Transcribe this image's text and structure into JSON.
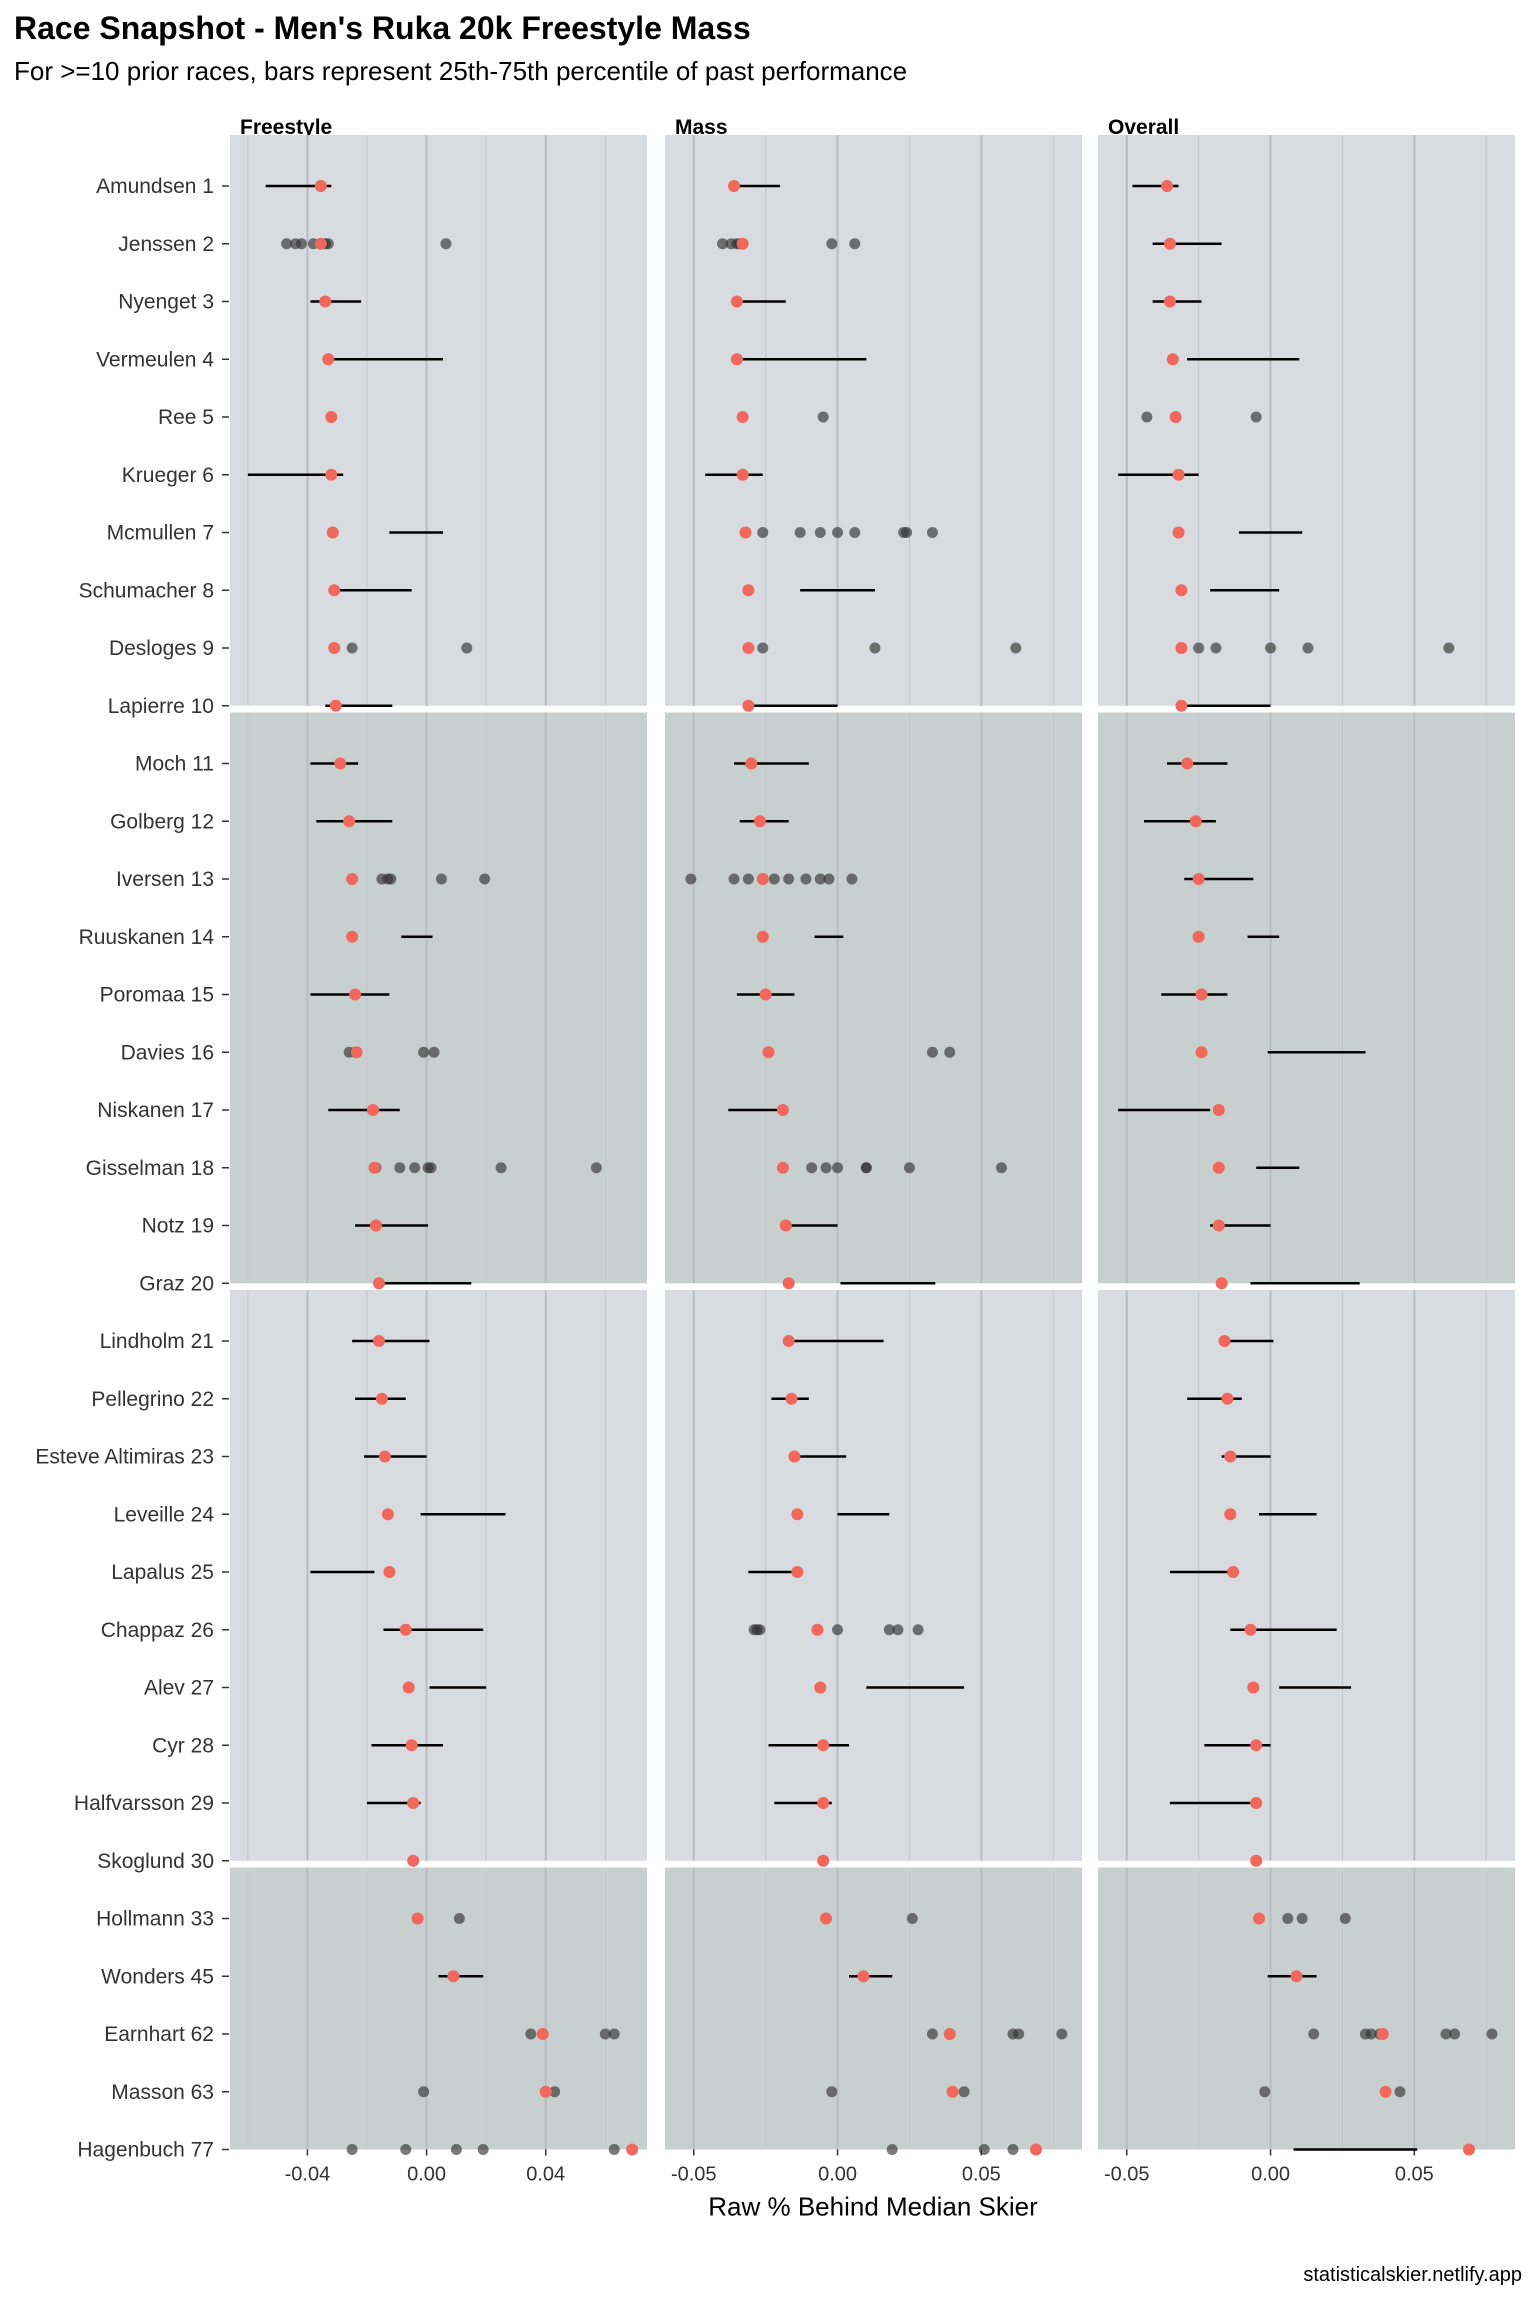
{
  "chart_data": {
    "type": "scatter",
    "title": "Race Snapshot -  Men's Ruka 20k Freestyle Mass",
    "subtitle": "For >=10 prior races, bars represent 25th-75th percentile of past performance",
    "caption": "statisticalskier.netlify.app",
    "xlabel": "Raw % Behind Median Skier",
    "colors": {
      "current": "#F0675C",
      "past": "#333333",
      "bar": "#000000",
      "band_light": "#D8DBE0",
      "band_dark": "#C8D0CF"
    },
    "skiers": [
      "Amundsen 1",
      "Jenssen 2",
      "Nyenget 3",
      "Vermeulen 4",
      "Ree 5",
      "Krueger 6",
      "Mcmullen 7",
      "Schumacher 8",
      "Desloges 9",
      "Lapierre 10",
      "Moch 11",
      "Golberg 12",
      "Iversen 13",
      "Ruuskanen 14",
      "Poromaa 15",
      "Davies 16",
      "Niskanen 17",
      "Gisselman 18",
      "Notz 19",
      "Graz 20",
      "Lindholm 21",
      "Pellegrino 22",
      "Esteve Altimiras 23",
      "Leveille 24",
      "Lapalus 25",
      "Chappaz 26",
      "Alev 27",
      "Cyr 28",
      "Halfvarsson 29",
      "Skoglund 30",
      "Hollmann 33",
      "Wonders 45",
      "Earnhart 62",
      "Masson 63",
      "Hagenbuch 77"
    ],
    "groups": [
      10,
      10,
      10,
      5
    ],
    "facets": [
      {
        "name": "Freestyle",
        "xlim": [
          -0.066,
          0.074
        ],
        "ticks": [
          -0.04,
          0.0,
          0.04
        ],
        "tick_labels": [
          "-0.04",
          "0.00",
          "0.04"
        ],
        "minor_ticks": [
          -0.06,
          -0.02,
          0.02,
          0.06
        ],
        "current": [
          -0.0355,
          -0.0355,
          -0.034,
          -0.033,
          -0.032,
          -0.032,
          -0.0315,
          -0.031,
          -0.031,
          -0.0305,
          -0.029,
          -0.026,
          -0.025,
          -0.025,
          -0.024,
          -0.0235,
          -0.018,
          -0.0175,
          -0.017,
          -0.016,
          -0.016,
          -0.015,
          -0.014,
          -0.013,
          -0.0125,
          -0.007,
          -0.006,
          -0.005,
          -0.0045,
          -0.0045,
          -0.003,
          0.009,
          0.039,
          0.04,
          0.069
        ],
        "bars": [
          [
            -0.054,
            -0.032
          ],
          null,
          [
            -0.039,
            -0.022
          ],
          [
            -0.033,
            0.0055
          ],
          null,
          [
            -0.06,
            -0.028
          ],
          [
            -0.0125,
            0.0055
          ],
          [
            -0.031,
            -0.005
          ],
          null,
          [
            -0.034,
            -0.0115
          ],
          [
            -0.039,
            -0.023
          ],
          [
            -0.037,
            -0.0115
          ],
          null,
          [
            -0.0085,
            0.002
          ],
          [
            -0.039,
            -0.0125
          ],
          null,
          [
            -0.033,
            -0.009
          ],
          null,
          [
            -0.024,
            0.0005
          ],
          [
            -0.016,
            0.015
          ],
          [
            -0.025,
            0.001
          ],
          [
            -0.024,
            -0.007
          ],
          [
            -0.021,
            0.0
          ],
          [
            -0.002,
            0.0265
          ],
          [
            -0.039,
            -0.0175
          ],
          [
            -0.0145,
            0.019
          ],
          [
            0.001,
            0.02
          ],
          [
            -0.0185,
            0.0055
          ],
          [
            -0.02,
            -0.002
          ],
          null,
          null,
          [
            0.004,
            0.019
          ],
          null,
          null,
          null
        ],
        "past": [
          [],
          [
            -0.047,
            -0.044,
            -0.042,
            -0.038,
            -0.035,
            -0.033,
            -0.034,
            0.0065
          ],
          [],
          [],
          [],
          [],
          [],
          [],
          [
            -0.025,
            0.0135
          ],
          [],
          [],
          [],
          [
            -0.025,
            -0.015,
            -0.013,
            -0.012,
            0.005,
            0.0195
          ],
          [],
          [],
          [
            -0.026,
            -0.024,
            -0.001,
            0.0025
          ],
          [],
          [
            -0.017,
            -0.009,
            -0.004,
            0.0005,
            0.0015,
            0.025,
            0.057
          ],
          [],
          [],
          [],
          [],
          [],
          [],
          [],
          [],
          [],
          [],
          [],
          [],
          [
            0.011
          ],
          [],
          [
            0.035,
            0.06,
            0.063
          ],
          [
            -0.001,
            0.043
          ],
          [
            -0.025,
            -0.007,
            0.01,
            0.019,
            0.063
          ]
        ]
      },
      {
        "name": "Mass",
        "xlim": [
          -0.06,
          0.085
        ],
        "ticks": [
          -0.05,
          0.0,
          0.05
        ],
        "tick_labels": [
          "-0.05",
          "0.00",
          "0.05"
        ],
        "minor_ticks": [
          -0.025,
          0.025,
          0.075
        ],
        "current": [
          -0.036,
          -0.033,
          -0.035,
          -0.035,
          -0.033,
          -0.033,
          -0.032,
          -0.031,
          -0.031,
          -0.031,
          -0.03,
          -0.027,
          -0.026,
          -0.026,
          -0.025,
          -0.024,
          -0.019,
          -0.019,
          -0.018,
          -0.017,
          -0.017,
          -0.016,
          -0.015,
          -0.014,
          -0.014,
          -0.007,
          -0.006,
          -0.005,
          -0.005,
          -0.005,
          -0.004,
          0.009,
          0.039,
          0.04,
          0.069
        ],
        "bars": [
          [
            -0.036,
            -0.02
          ],
          null,
          [
            -0.035,
            -0.018
          ],
          [
            -0.033,
            0.01
          ],
          null,
          [
            -0.046,
            -0.026
          ],
          null,
          [
            -0.013,
            0.013
          ],
          null,
          [
            -0.031,
            0.0
          ],
          [
            -0.036,
            -0.01
          ],
          [
            -0.034,
            -0.017
          ],
          null,
          [
            -0.008,
            0.002
          ],
          [
            -0.035,
            -0.015
          ],
          null,
          [
            -0.038,
            -0.019
          ],
          null,
          [
            -0.018,
            0.0
          ],
          [
            0.001,
            0.034
          ],
          [
            -0.017,
            0.016
          ],
          [
            -0.023,
            -0.01
          ],
          [
            -0.016,
            0.003
          ],
          [
            0.0,
            0.018
          ],
          [
            -0.031,
            -0.012
          ],
          null,
          [
            0.01,
            0.044
          ],
          [
            -0.024,
            0.004
          ],
          [
            -0.022,
            -0.002
          ],
          null,
          null,
          [
            0.004,
            0.019
          ],
          null,
          null,
          null
        ],
        "past": [
          [],
          [
            -0.04,
            -0.037,
            -0.035,
            -0.034,
            -0.002,
            0.006
          ],
          [],
          [],
          [
            -0.005
          ],
          [],
          [
            -0.026,
            -0.013,
            -0.006,
            0.0,
            0.006,
            0.023,
            0.024,
            0.033
          ],
          [],
          [
            -0.026,
            0.013,
            0.062
          ],
          [],
          [],
          [],
          [
            -0.051,
            -0.036,
            -0.031,
            -0.022,
            -0.017,
            -0.011,
            -0.006,
            -0.003,
            0.005
          ],
          [],
          [],
          [
            0.033,
            0.039
          ],
          [],
          [
            -0.009,
            -0.004,
            0.0,
            0.01,
            0.01,
            0.025,
            0.057
          ],
          [],
          [],
          [],
          [],
          [],
          [],
          [],
          [
            -0.029,
            -0.028,
            -0.027,
            0.0,
            0.018,
            0.021,
            0.028
          ],
          [],
          [],
          [],
          [],
          [
            0.026
          ],
          [],
          [
            0.033,
            0.061,
            0.063,
            0.078
          ],
          [
            -0.002,
            0.044
          ],
          [
            0.019,
            0.051,
            0.061
          ]
        ]
      },
      {
        "name": "Overall",
        "xlim": [
          -0.06,
          0.085
        ],
        "ticks": [
          -0.05,
          0.0,
          0.05
        ],
        "tick_labels": [
          "-0.05",
          "0.00",
          "0.05"
        ],
        "minor_ticks": [
          -0.025,
          0.025,
          0.075
        ],
        "current": [
          -0.036,
          -0.035,
          -0.035,
          -0.034,
          -0.033,
          -0.032,
          -0.032,
          -0.031,
          -0.031,
          -0.031,
          -0.029,
          -0.026,
          -0.025,
          -0.025,
          -0.024,
          -0.024,
          -0.018,
          -0.018,
          -0.018,
          -0.017,
          -0.016,
          -0.015,
          -0.014,
          -0.014,
          -0.013,
          -0.007,
          -0.006,
          -0.005,
          -0.005,
          -0.005,
          -0.004,
          0.009,
          0.039,
          0.04,
          0.069
        ],
        "bars": [
          [
            -0.048,
            -0.032
          ],
          [
            -0.041,
            -0.017
          ],
          [
            -0.041,
            -0.024
          ],
          [
            -0.029,
            0.01
          ],
          null,
          [
            -0.053,
            -0.025
          ],
          [
            -0.011,
            0.011
          ],
          [
            -0.021,
            0.003
          ],
          null,
          [
            -0.029,
            0.0
          ],
          [
            -0.036,
            -0.015
          ],
          [
            -0.044,
            -0.019
          ],
          [
            -0.03,
            -0.006
          ],
          [
            -0.008,
            0.003
          ],
          [
            -0.038,
            -0.015
          ],
          [
            -0.001,
            0.033
          ],
          [
            -0.053,
            -0.021
          ],
          [
            -0.005,
            0.01
          ],
          [
            -0.021,
            0.0
          ],
          [
            -0.007,
            0.031
          ],
          [
            -0.018,
            0.001
          ],
          [
            -0.029,
            -0.01
          ],
          [
            -0.017,
            0.0
          ],
          [
            -0.004,
            0.016
          ],
          [
            -0.035,
            -0.013
          ],
          [
            -0.014,
            0.023
          ],
          [
            0.003,
            0.028
          ],
          [
            -0.023,
            0.0
          ],
          [
            -0.035,
            -0.007
          ],
          null,
          null,
          [
            -0.001,
            0.016
          ],
          null,
          null,
          [
            0.008,
            0.051
          ]
        ],
        "past": [
          [],
          [],
          [],
          [],
          [
            -0.043,
            -0.005
          ],
          [],
          [],
          [],
          [
            -0.025,
            -0.019,
            0.0,
            0.013,
            0.062
          ],
          [],
          [],
          [],
          [],
          [],
          [],
          [],
          [],
          [],
          [],
          [],
          [],
          [],
          [],
          [],
          [],
          [],
          [],
          [],
          [],
          [],
          [
            0.006,
            0.011,
            0.026
          ],
          [],
          [
            0.015,
            0.033,
            0.035,
            0.038,
            0.061,
            0.064,
            0.077
          ],
          [
            -0.002,
            0.045
          ],
          []
        ]
      }
    ]
  }
}
